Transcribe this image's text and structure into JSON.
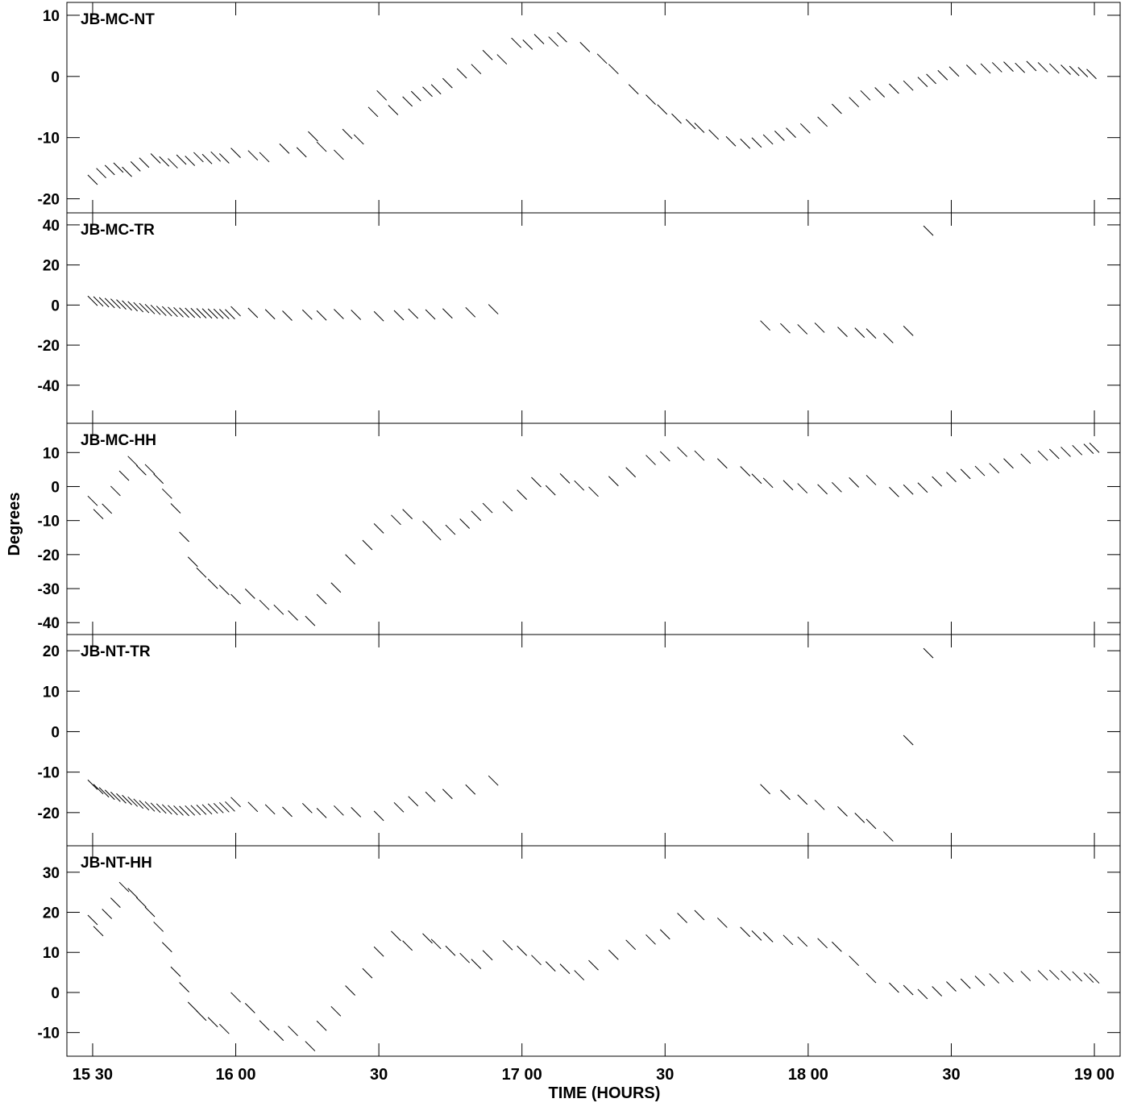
{
  "figure": {
    "ylabel": "Degrees",
    "xlabel": "TIME (HOURS)",
    "x_ticks": [
      {
        "value": 15.5,
        "label": "15 30"
      },
      {
        "value": 16.0,
        "label": "16 00"
      },
      {
        "value": 16.5,
        "label": "30"
      },
      {
        "value": 17.0,
        "label": "17 00"
      },
      {
        "value": 17.5,
        "label": "30"
      },
      {
        "value": 18.0,
        "label": "18 00"
      },
      {
        "value": 18.5,
        "label": "30"
      },
      {
        "value": 19.0,
        "label": "19 00"
      }
    ],
    "x_range_hours": [
      15.41,
      19.09
    ],
    "mark_style": "short diagonal line segments (phase vs time)"
  },
  "chart_data": [
    {
      "type": "scatter",
      "title": "JB-MC-NT",
      "ylim": [
        -22.3,
        12.1
      ],
      "y_ticks": [
        10,
        0,
        -10,
        -20
      ],
      "series": [
        {
          "x": [
            15.5,
            15.53,
            15.56,
            15.59,
            15.62,
            15.65,
            15.68,
            15.72,
            15.75,
            15.78,
            15.81,
            15.84,
            15.87,
            15.9,
            15.93,
            15.96,
            16.0,
            16.06,
            16.1,
            16.17,
            16.23,
            16.27,
            16.3,
            16.36,
            16.39,
            16.43,
            16.48,
            16.51,
            16.55,
            16.6,
            16.63,
            16.67,
            16.7,
            16.74,
            16.79,
            16.84,
            16.88,
            16.93,
            16.98,
            17.02,
            17.06,
            17.11,
            17.14,
            17.22,
            17.28,
            17.32,
            17.39,
            17.45,
            17.49,
            17.54,
            17.59,
            17.62,
            17.67,
            17.73,
            17.78,
            17.82,
            17.86,
            17.9,
            17.94,
            17.99,
            18.05,
            18.1,
            18.16,
            18.2,
            18.25,
            18.3,
            18.35,
            18.4,
            18.43,
            18.47,
            18.51,
            18.57,
            18.62,
            18.66,
            18.7,
            18.74,
            18.78,
            18.82,
            18.86,
            18.9,
            18.93,
            18.96,
            18.99
          ],
          "y": [
            -16.9,
            -15.8,
            -15.3,
            -14.9,
            -15.6,
            -14.7,
            -14.1,
            -13.4,
            -13.9,
            -14.2,
            -13.6,
            -13.8,
            -13.2,
            -13.5,
            -13.1,
            -13.4,
            -12.5,
            -12.9,
            -13.2,
            -11.8,
            -12.4,
            -9.8,
            -11.5,
            -12.8,
            -9.4,
            -10.3,
            -5.8,
            -3.1,
            -5.5,
            -4.1,
            -3.2,
            -2.5,
            -2.1,
            -1.1,
            0.5,
            1.2,
            3.5,
            2.8,
            5.5,
            5.2,
            6.1,
            5.7,
            6.4,
            4.8,
            2.9,
            1.2,
            -2.1,
            -3.8,
            -5.4,
            -6.9,
            -7.8,
            -8.4,
            -9.5,
            -10.6,
            -11.0,
            -10.8,
            -10.3,
            -9.7,
            -9.2,
            -8.5,
            -7.4,
            -5.3,
            -4.2,
            -3.1,
            -2.6,
            -2.0,
            -1.5,
            -0.9,
            -0.4,
            0.2,
            0.8,
            1.1,
            1.3,
            1.5,
            1.6,
            1.4,
            1.7,
            1.5,
            1.3,
            1.1,
            0.9,
            0.7,
            0.4
          ]
        }
      ]
    },
    {
      "type": "scatter",
      "title": "JB-MC-TR",
      "ylim": [
        -59,
        46
      ],
      "y_ticks": [
        40,
        20,
        0,
        -20,
        -40
      ],
      "series": [
        {
          "x": [
            15.5,
            15.52,
            15.54,
            15.56,
            15.58,
            15.6,
            15.62,
            15.64,
            15.66,
            15.68,
            15.7,
            15.72,
            15.74,
            15.76,
            15.78,
            15.8,
            15.82,
            15.84,
            15.86,
            15.88,
            15.9,
            15.92,
            15.94,
            15.96,
            15.98,
            16.0,
            16.06,
            16.12,
            16.18,
            16.25,
            16.3,
            16.36,
            16.42,
            16.5,
            16.57,
            16.62,
            16.68,
            16.74,
            16.82,
            16.9,
            17.85,
            17.92,
            17.98,
            18.04,
            18.12,
            18.18,
            18.22,
            18.28,
            18.35,
            18.42
          ],
          "y": [
            2.1,
            1.8,
            1.4,
            1.0,
            0.7,
            0.3,
            -0.2,
            -0.6,
            -1.1,
            -1.5,
            -2.0,
            -2.4,
            -2.9,
            -3.1,
            -3.4,
            -3.6,
            -3.8,
            -3.9,
            -4.0,
            -4.1,
            -4.2,
            -4.3,
            -4.4,
            -4.5,
            -4.6,
            -3.1,
            -3.9,
            -4.6,
            -5.3,
            -4.8,
            -5.2,
            -4.5,
            -4.9,
            -5.6,
            -5.1,
            -4.3,
            -4.7,
            -4.2,
            -3.6,
            -2.1,
            -10.2,
            -11.6,
            -12.1,
            -11.3,
            -13.4,
            -13.8,
            -14.2,
            -16.5,
            -12.9,
            37.1
          ]
        }
      ]
    },
    {
      "type": "scatter",
      "title": "JB-MC-HH",
      "ylim": [
        -43.5,
        18.6
      ],
      "y_ticks": [
        10,
        0,
        -10,
        -20,
        -30,
        -40
      ],
      "series": [
        {
          "x": [
            15.5,
            15.52,
            15.55,
            15.58,
            15.61,
            15.64,
            15.67,
            15.7,
            15.73,
            15.76,
            15.79,
            15.82,
            15.85,
            15.88,
            15.92,
            15.96,
            16.0,
            16.05,
            16.1,
            16.15,
            16.2,
            16.26,
            16.3,
            16.35,
            16.4,
            16.46,
            16.5,
            16.56,
            16.6,
            16.67,
            16.7,
            16.75,
            16.8,
            16.84,
            16.88,
            16.95,
            17.0,
            17.05,
            17.1,
            17.15,
            17.2,
            17.25,
            17.32,
            17.38,
            17.45,
            17.5,
            17.56,
            17.62,
            17.7,
            17.78,
            17.82,
            17.86,
            17.93,
            17.98,
            18.05,
            18.1,
            18.16,
            18.22,
            18.3,
            18.35,
            18.4,
            18.45,
            18.5,
            18.55,
            18.6,
            18.65,
            18.7,
            18.76,
            18.82,
            18.86,
            18.9,
            18.94,
            18.98,
            19.0
          ],
          "y": [
            -4.2,
            -8.1,
            -6.5,
            -1.3,
            3.2,
            7.5,
            4.8,
            5.1,
            2.3,
            -2.1,
            -6.4,
            -14.8,
            -22.1,
            -25.3,
            -28.6,
            -30.4,
            -33.1,
            -31.5,
            -34.8,
            -36.2,
            -37.9,
            -39.5,
            -33.1,
            -29.7,
            -21.4,
            -17.2,
            -12.3,
            -9.8,
            -8.1,
            -11.6,
            -14.3,
            -12.7,
            -10.9,
            -8.6,
            -6.3,
            -5.8,
            -2.4,
            1.3,
            -1.1,
            2.4,
            0.3,
            -1.5,
            1.6,
            4.2,
            7.8,
            8.9,
            10.2,
            9.1,
            6.8,
            4.5,
            2.3,
            1.1,
            0.4,
            -0.5,
            -0.8,
            -0.2,
            1.2,
            1.9,
            -1.6,
            -0.9,
            -0.3,
            1.5,
            2.8,
            3.7,
            4.6,
            5.4,
            6.8,
            8.2,
            9.1,
            9.6,
            10.2,
            10.7,
            11.1,
            11.4
          ]
        }
      ]
    },
    {
      "type": "scatter",
      "title": "JB-NT-TR",
      "ylim": [
        -28.2,
        24
      ],
      "y_ticks": [
        20,
        10,
        0,
        -10,
        -20
      ],
      "series": [
        {
          "x": [
            15.5,
            15.52,
            15.54,
            15.56,
            15.58,
            15.6,
            15.62,
            15.64,
            15.66,
            15.68,
            15.7,
            15.72,
            15.74,
            15.76,
            15.78,
            15.8,
            15.82,
            15.84,
            15.86,
            15.88,
            15.9,
            15.92,
            15.94,
            15.96,
            15.98,
            16.0,
            16.06,
            16.12,
            16.18,
            16.25,
            16.3,
            16.36,
            16.42,
            16.5,
            16.57,
            16.62,
            16.68,
            16.74,
            16.82,
            16.9,
            17.85,
            17.92,
            17.98,
            18.04,
            18.12,
            18.18,
            18.22,
            18.28,
            18.35,
            18.42
          ],
          "y": [
            -13.1,
            -14.2,
            -15.0,
            -15.6,
            -16.1,
            -16.5,
            -16.9,
            -17.3,
            -17.8,
            -18.2,
            -18.5,
            -18.8,
            -19.0,
            -19.2,
            -19.4,
            -19.5,
            -19.6,
            -19.5,
            -19.4,
            -19.3,
            -19.2,
            -19.0,
            -18.9,
            -18.7,
            -18.5,
            -17.4,
            -18.6,
            -19.2,
            -19.8,
            -18.9,
            -20.1,
            -19.5,
            -19.9,
            -20.8,
            -18.7,
            -17.2,
            -16.1,
            -15.4,
            -14.3,
            -12.1,
            -14.2,
            -15.6,
            -16.8,
            -18.1,
            -19.7,
            -21.3,
            -22.8,
            -25.9,
            -2.1,
            19.4
          ]
        }
      ]
    },
    {
      "type": "scatter",
      "title": "JB-NT-HH",
      "ylim": [
        -15.9,
        36.6
      ],
      "y_ticks": [
        30,
        20,
        10,
        0,
        -10
      ],
      "series": [
        {
          "x": [
            15.5,
            15.52,
            15.55,
            15.58,
            15.61,
            15.64,
            15.67,
            15.7,
            15.73,
            15.76,
            15.79,
            15.82,
            15.85,
            15.88,
            15.92,
            15.96,
            16.0,
            16.05,
            16.1,
            16.15,
            16.2,
            16.26,
            16.3,
            16.35,
            16.4,
            16.46,
            16.5,
            16.56,
            16.6,
            16.67,
            16.7,
            16.75,
            16.8,
            16.84,
            16.88,
            16.95,
            17.0,
            17.05,
            17.1,
            17.15,
            17.2,
            17.25,
            17.32,
            17.38,
            17.45,
            17.5,
            17.56,
            17.62,
            17.7,
            17.78,
            17.82,
            17.86,
            17.93,
            17.98,
            18.05,
            18.1,
            18.16,
            18.22,
            18.3,
            18.35,
            18.4,
            18.45,
            18.5,
            18.55,
            18.6,
            18.65,
            18.7,
            18.76,
            18.82,
            18.86,
            18.9,
            18.94,
            18.98,
            19.0
          ],
          "y": [
            18.1,
            15.3,
            19.6,
            22.4,
            26.3,
            24.8,
            22.5,
            20.1,
            16.4,
            11.3,
            5.2,
            1.3,
            -3.6,
            -5.8,
            -7.4,
            -9.1,
            -1.2,
            -3.9,
            -8.2,
            -10.8,
            -9.6,
            -13.4,
            -8.3,
            -4.7,
            0.5,
            4.8,
            10.2,
            14.1,
            11.7,
            13.5,
            12.1,
            10.4,
            8.6,
            7.1,
            9.3,
            11.8,
            10.4,
            8.1,
            6.5,
            5.9,
            4.3,
            6.8,
            9.4,
            11.9,
            13.2,
            14.5,
            18.6,
            19.3,
            17.4,
            15.1,
            14.2,
            13.8,
            13.1,
            12.7,
            12.3,
            11.4,
            7.9,
            3.6,
            1.2,
            0.6,
            -0.4,
            0.3,
            1.5,
            2.2,
            2.9,
            3.5,
            3.8,
            4.1,
            4.3,
            4.4,
            4.2,
            4.0,
            3.7,
            3.5
          ]
        }
      ]
    }
  ]
}
